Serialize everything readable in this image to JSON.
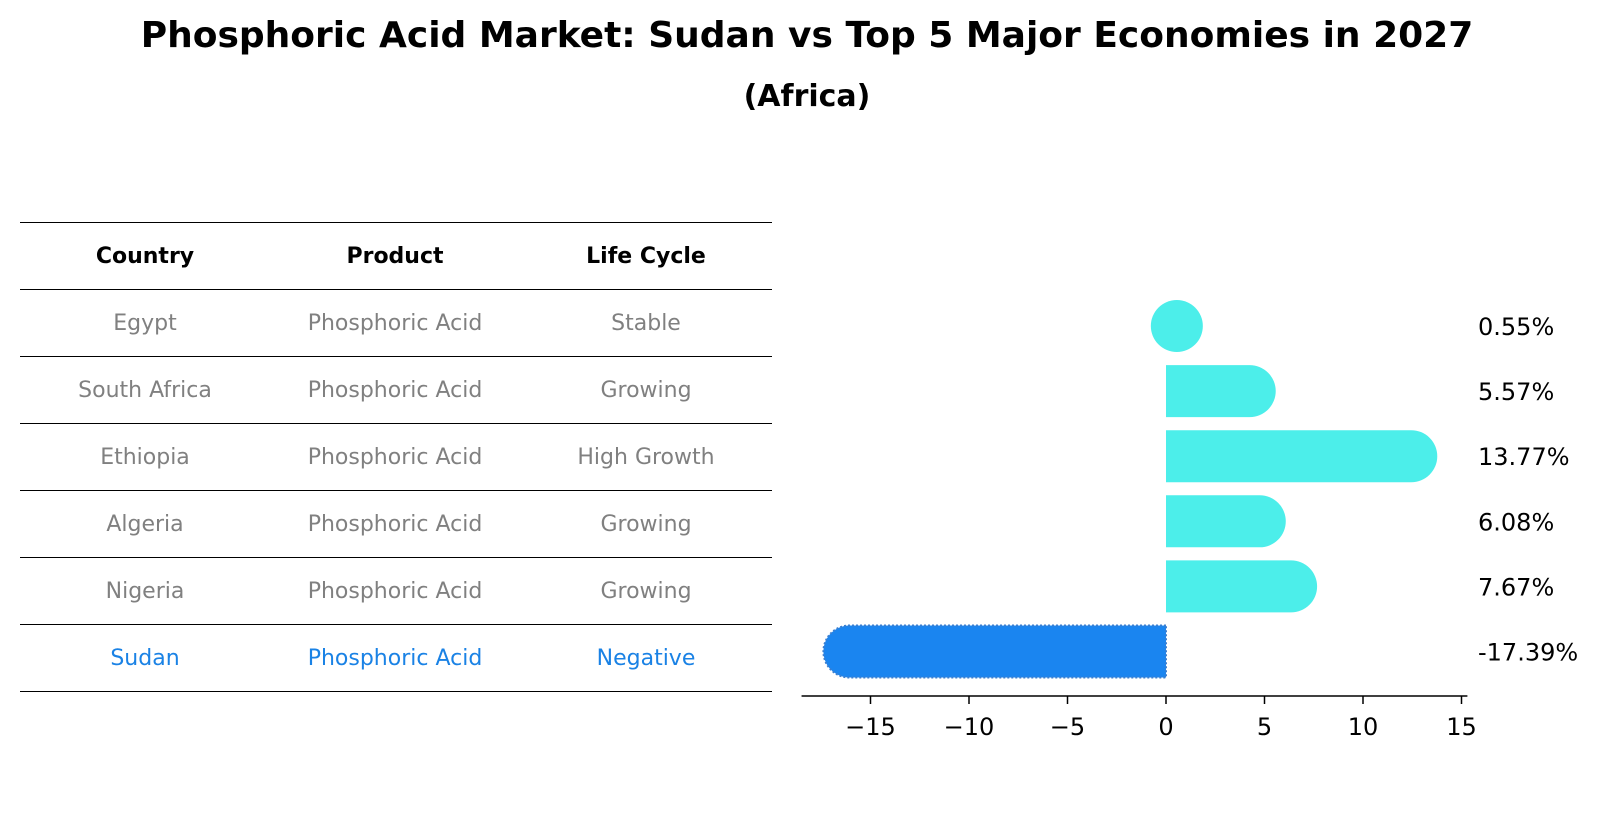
{
  "title": "Phosphoric Acid Market: Sudan vs Top 5 Major Economies in 2027",
  "subtitle": "(Africa)",
  "table": {
    "headers": [
      "Country",
      "Product",
      "Life Cycle"
    ],
    "rows": [
      {
        "country": "Egypt",
        "product": "Phosphoric Acid",
        "life_cycle": "Stable"
      },
      {
        "country": "South Africa",
        "product": "Phosphoric Acid",
        "life_cycle": "Growing"
      },
      {
        "country": "Ethiopia",
        "product": "Phosphoric Acid",
        "life_cycle": "High Growth"
      },
      {
        "country": "Algeria",
        "product": "Phosphoric Acid",
        "life_cycle": "Growing"
      },
      {
        "country": "Nigeria",
        "product": "Phosphoric Acid",
        "life_cycle": "Growing"
      },
      {
        "country": "Sudan",
        "product": "Phosphoric Acid",
        "life_cycle": "Negative"
      }
    ]
  },
  "colors": {
    "bar_default": "#4ceeea",
    "bar_highlight": "#1a85f0",
    "text_highlight": "#1a82e5",
    "text_muted": "#808080"
  },
  "chart_data": {
    "type": "bar",
    "orientation": "horizontal",
    "categories": [
      "Egypt",
      "South Africa",
      "Ethiopia",
      "Algeria",
      "Nigeria",
      "Sudan"
    ],
    "values": [
      0.55,
      5.57,
      13.77,
      6.08,
      7.67,
      -17.39
    ],
    "value_labels": [
      "0.55%",
      "5.57%",
      "13.77%",
      "6.08%",
      "7.67%",
      "-17.39%"
    ],
    "highlight": "Sudan",
    "xlim": [
      -18.5,
      15.3
    ],
    "xticks": [
      -15,
      -10,
      -5,
      0,
      5,
      10,
      15
    ],
    "xtick_labels": [
      "−15",
      "−10",
      "−5",
      "0",
      "5",
      "10",
      "15"
    ]
  }
}
